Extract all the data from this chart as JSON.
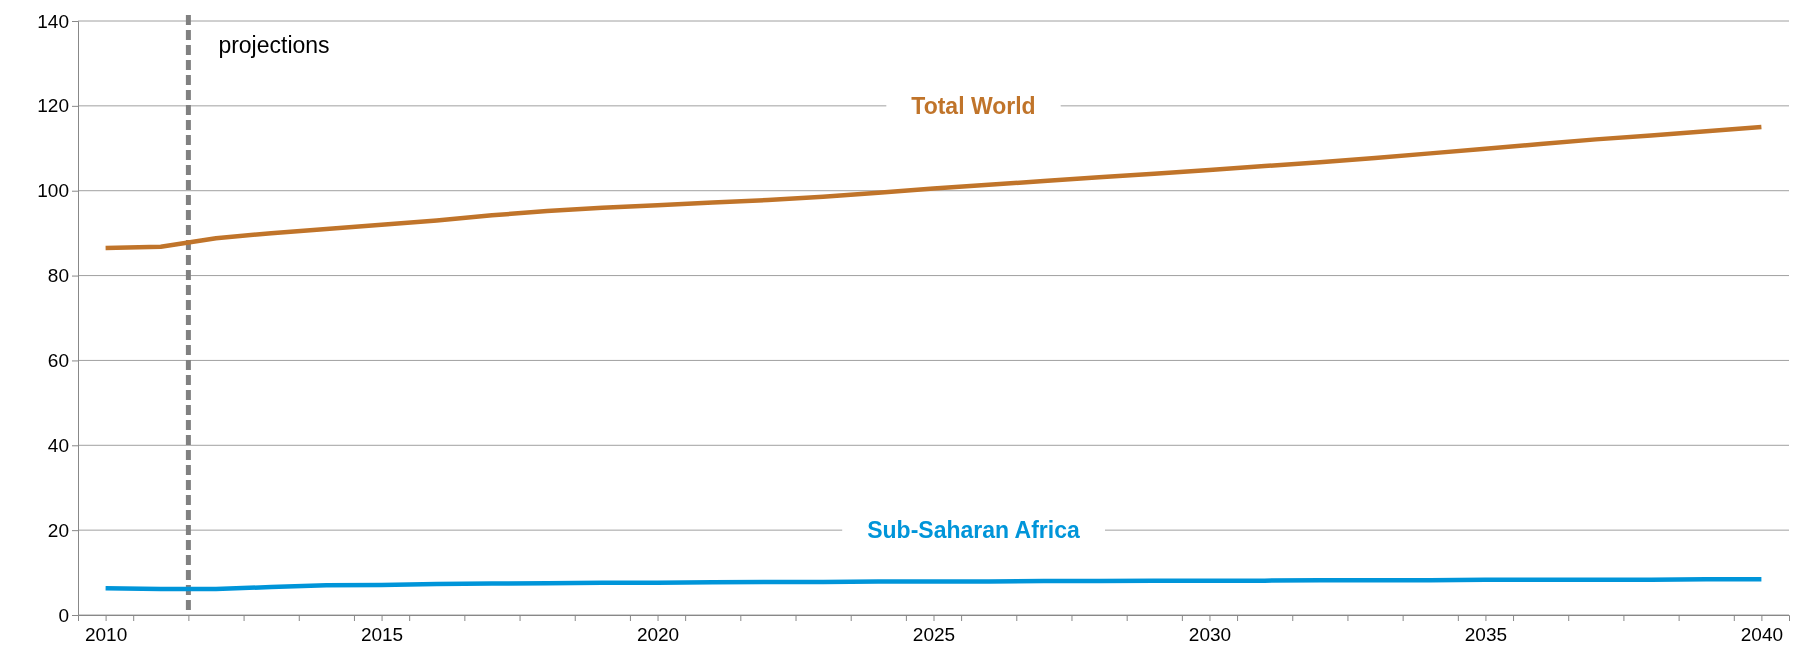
{
  "chart_data": {
    "type": "line",
    "x": [
      2010,
      2011,
      2012,
      2013,
      2014,
      2015,
      2016,
      2017,
      2018,
      2019,
      2020,
      2021,
      2022,
      2023,
      2024,
      2025,
      2026,
      2027,
      2028,
      2029,
      2030,
      2031,
      2032,
      2033,
      2034,
      2035,
      2036,
      2037,
      2038,
      2039,
      2040
    ],
    "series": [
      {
        "name": "Total World",
        "color": "#c0742a",
        "values": [
          86.5,
          86.8,
          88.8,
          90,
          91,
          92,
          93,
          94.2,
          95.2,
          96,
          96.6,
          97.2,
          97.8,
          98.6,
          99.5,
          100.5,
          101.4,
          102.3,
          103.2,
          104,
          104.9,
          105.8,
          106.7,
          107.7,
          108.8,
          109.9,
          111,
          112.1,
          113,
          114,
          115
        ]
      },
      {
        "name": "Sub-Saharan Africa",
        "color": "#0095d9",
        "values": [
          6.3,
          6.1,
          6.1,
          6.6,
          7.0,
          7.1,
          7.3,
          7.4,
          7.5,
          7.6,
          7.6,
          7.7,
          7.8,
          7.8,
          7.9,
          7.9,
          7.9,
          8.0,
          8.0,
          8.1,
          8.1,
          8.1,
          8.2,
          8.2,
          8.2,
          8.3,
          8.3,
          8.3,
          8.3,
          8.4,
          8.4
        ]
      }
    ],
    "xlim": [
      2009.5,
      2040.5
    ],
    "xticks": [
      2010,
      {
        "value": 2010.5,
        "label": null
      },
      {
        "value": 2011.5,
        "label": null
      },
      {
        "value": 2012.5,
        "label": null
      },
      {
        "value": 2013.5,
        "label": null
      },
      {
        "value": 2014.5,
        "label": null
      },
      2015,
      {
        "value": 2015.5,
        "label": null
      },
      {
        "value": 2016.5,
        "label": null
      },
      {
        "value": 2017.5,
        "label": null
      },
      {
        "value": 2018.5,
        "label": null
      },
      {
        "value": 2019.5,
        "label": null
      },
      2020,
      {
        "value": 2020.5,
        "label": null
      },
      {
        "value": 2021.5,
        "label": null
      },
      {
        "value": 2022.5,
        "label": null
      },
      {
        "value": 2023.5,
        "label": null
      },
      {
        "value": 2024.5,
        "label": null
      },
      2025,
      {
        "value": 2025.5,
        "label": null
      },
      {
        "value": 2026.5,
        "label": null
      },
      {
        "value": 2027.5,
        "label": null
      },
      {
        "value": 2028.5,
        "label": null
      },
      {
        "value": 2029.5,
        "label": null
      },
      2030,
      {
        "value": 2030.5,
        "label": null
      },
      {
        "value": 2031.5,
        "label": null
      },
      {
        "value": 2032.5,
        "label": null
      },
      {
        "value": 2033.5,
        "label": null
      },
      {
        "value": 2034.5,
        "label": null
      },
      2035,
      {
        "value": 2035.5,
        "label": null
      },
      {
        "value": 2036.5,
        "label": null
      },
      {
        "value": 2037.5,
        "label": null
      },
      {
        "value": 2038.5,
        "label": null
      },
      {
        "value": 2039.5,
        "label": null
      },
      2040
    ],
    "ylim": [
      0,
      140
    ],
    "yticks": [
      0,
      20,
      40,
      60,
      80,
      100,
      120,
      140
    ],
    "grid": "y",
    "ref_lines": [
      {
        "axis": "x",
        "value": 2011.5,
        "label": "projections",
        "color": "#808080",
        "line_style": "dashed"
      }
    ]
  }
}
